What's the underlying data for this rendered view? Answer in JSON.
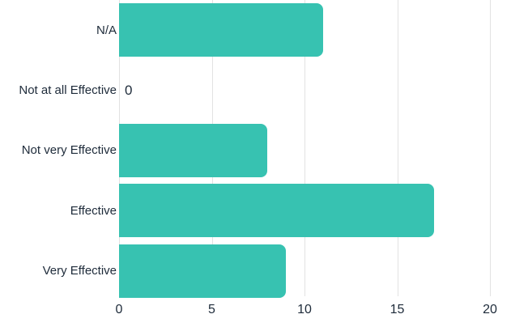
{
  "chart_data": {
    "type": "bar",
    "orientation": "horizontal",
    "categories": [
      "N/A",
      "Not at all Effective",
      "Not very Effective",
      "Effective",
      "Very Effective"
    ],
    "values": [
      11,
      0,
      8,
      17,
      9
    ],
    "zero_value_label": "0",
    "x_ticks": [
      0,
      5,
      10,
      15,
      20
    ],
    "xlim": [
      0,
      20
    ],
    "title": "",
    "xlabel": "",
    "ylabel": "",
    "grid": "vertical",
    "legend": "none",
    "bar_color": "#37c2b1",
    "gridline_color": "#e2e2e2",
    "text_color": "#1e2b3a"
  }
}
